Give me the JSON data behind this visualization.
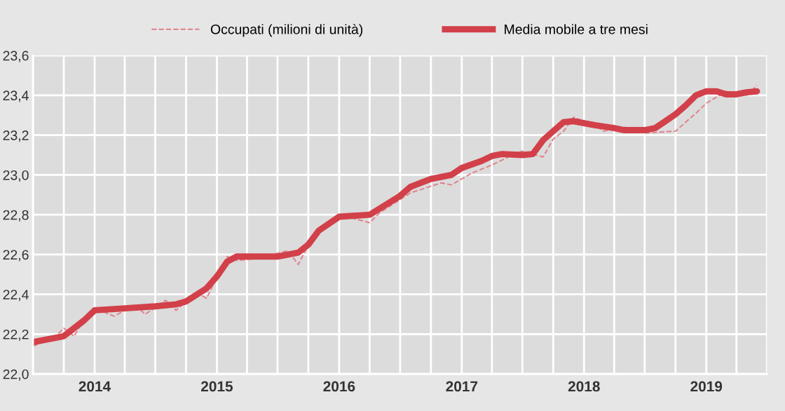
{
  "chart_data": {
    "type": "line",
    "series": [
      {
        "name": "Occupati (milioni di unità)",
        "color": "#e0808a",
        "line_style": "dashed",
        "x": [
          "2013-07",
          "2013-09",
          "2013-10",
          "2013-11",
          "2013-12",
          "2014-01",
          "2014-03",
          "2014-05",
          "2014-06",
          "2014-08",
          "2014-09",
          "2014-11",
          "2014-12",
          "2015-02",
          "2015-03",
          "2015-05",
          "2015-08",
          "2015-09",
          "2015-10",
          "2015-11",
          "2016-01",
          "2016-04",
          "2016-05",
          "2016-08",
          "2016-11",
          "2016-12",
          "2017-02",
          "2017-04",
          "2017-06",
          "2017-07",
          "2017-09",
          "2017-10",
          "2017-11",
          "2017-12",
          "2018-02",
          "2018-03",
          "2018-05",
          "2018-07",
          "2018-10",
          "2018-12",
          "2019-01",
          "2019-03",
          "2019-05",
          "2019-06"
        ],
        "values": [
          22.14,
          22.18,
          22.23,
          22.19,
          22.28,
          22.33,
          22.29,
          22.35,
          22.3,
          22.37,
          22.32,
          22.41,
          22.38,
          22.59,
          22.57,
          22.58,
          22.62,
          22.55,
          22.65,
          22.72,
          22.8,
          22.76,
          22.81,
          22.91,
          22.96,
          22.95,
          23.01,
          23.05,
          23.1,
          23.12,
          23.09,
          23.18,
          23.22,
          23.29,
          23.25,
          23.22,
          23.24,
          23.21,
          23.22,
          23.31,
          23.36,
          23.42,
          23.4,
          23.45
        ]
      },
      {
        "name": "Media mobile a tre mesi",
        "color": "#d2404a",
        "line_style": "solid",
        "x": [
          "2013-07",
          "2013-10",
          "2013-12",
          "2014-01",
          "2014-04",
          "2014-07",
          "2014-09",
          "2014-10",
          "2014-12",
          "2015-01",
          "2015-02",
          "2015-03",
          "2015-04",
          "2015-07",
          "2015-09",
          "2015-10",
          "2015-11",
          "2016-01",
          "2016-04",
          "2016-07",
          "2016-08",
          "2016-10",
          "2016-12",
          "2017-01",
          "2017-03",
          "2017-04",
          "2017-05",
          "2017-07",
          "2017-08",
          "2017-09",
          "2017-10",
          "2017-11",
          "2017-12",
          "2018-01",
          "2018-02",
          "2018-04",
          "2018-05",
          "2018-07",
          "2018-08",
          "2018-09",
          "2018-10",
          "2018-11",
          "2018-12",
          "2019-01",
          "2019-02",
          "2019-03",
          "2019-04",
          "2019-05",
          "2019-06"
        ],
        "values": [
          22.16,
          22.19,
          22.27,
          22.32,
          22.33,
          22.34,
          22.35,
          22.365,
          22.43,
          22.49,
          22.565,
          22.59,
          22.59,
          22.59,
          22.61,
          22.65,
          22.72,
          22.79,
          22.8,
          22.895,
          22.94,
          22.98,
          23.0,
          23.035,
          23.07,
          23.095,
          23.105,
          23.1,
          23.105,
          23.175,
          23.22,
          23.265,
          23.27,
          23.26,
          23.25,
          23.235,
          23.225,
          23.225,
          23.235,
          23.27,
          23.305,
          23.35,
          23.4,
          23.42,
          23.42,
          23.405,
          23.405,
          23.415,
          23.42
        ]
      }
    ],
    "xlim": [
      "2013-07",
      "2019-07"
    ],
    "xticks": [
      {
        "value": "2013-07",
        "label": null
      },
      {
        "value": "2013-10",
        "label": null
      },
      {
        "value": "2014-01",
        "label": "2014"
      },
      {
        "value": "2014-04",
        "label": null
      },
      {
        "value": "2014-07",
        "label": null
      },
      {
        "value": "2014-10",
        "label": null
      },
      {
        "value": "2015-01",
        "label": "2015"
      },
      {
        "value": "2015-04",
        "label": null
      },
      {
        "value": "2015-07",
        "label": null
      },
      {
        "value": "2015-10",
        "label": null
      },
      {
        "value": "2016-01",
        "label": "2016"
      },
      {
        "value": "2016-04",
        "label": null
      },
      {
        "value": "2016-07",
        "label": null
      },
      {
        "value": "2016-10",
        "label": null
      },
      {
        "value": "2017-01",
        "label": "2017"
      },
      {
        "value": "2017-04",
        "label": null
      },
      {
        "value": "2017-07",
        "label": null
      },
      {
        "value": "2017-10",
        "label": null
      },
      {
        "value": "2018-01",
        "label": "2018"
      },
      {
        "value": "2018-04",
        "label": null
      },
      {
        "value": "2018-07",
        "label": null
      },
      {
        "value": "2018-10",
        "label": null
      },
      {
        "value": "2019-01",
        "label": "2019"
      },
      {
        "value": "2019-04",
        "label": null
      },
      {
        "value": "2019-07",
        "label": null
      }
    ],
    "ylim": [
      22.0,
      23.6
    ],
    "yticks": [
      {
        "value": 22.0,
        "label": "22,0"
      },
      {
        "value": 22.2,
        "label": "22,2"
      },
      {
        "value": 22.4,
        "label": "22,4"
      },
      {
        "value": 22.6,
        "label": "22,6"
      },
      {
        "value": 22.8,
        "label": "22,8"
      },
      {
        "value": 23.0,
        "label": "23,0"
      },
      {
        "value": 23.2,
        "label": "23,2"
      },
      {
        "value": 23.4,
        "label": "23,4"
      },
      {
        "value": 23.6,
        "label": "23,6"
      }
    ],
    "grid": true,
    "legend": "top"
  }
}
